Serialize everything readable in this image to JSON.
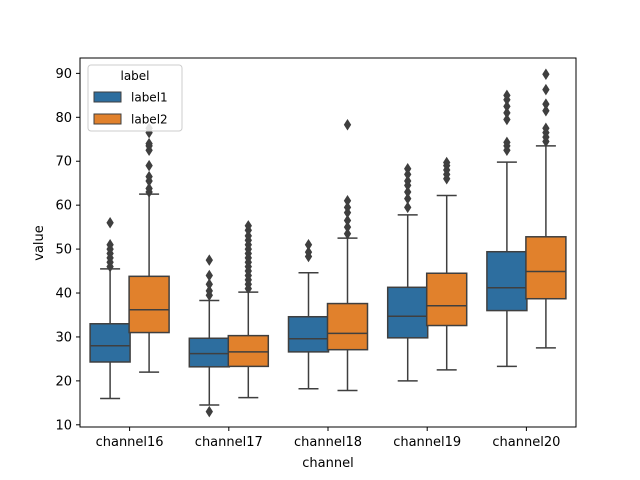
{
  "chart_data": {
    "type": "boxplot",
    "title": "",
    "xlabel": "channel",
    "ylabel": "value",
    "ylim": [
      9.5,
      93.5
    ],
    "yticks": [
      10,
      20,
      30,
      40,
      50,
      60,
      70,
      80,
      90
    ],
    "categories": [
      "channel16",
      "channel17",
      "channel18",
      "channel19",
      "channel20"
    ],
    "legend": {
      "title": "label",
      "position": "upper-left"
    },
    "grid": false,
    "series": [
      {
        "name": "label1",
        "color": "#2d6e9f",
        "boxes": [
          {
            "whislo": 16,
            "q1": 24.3,
            "med": 28,
            "q3": 33,
            "whishi": 45.5,
            "fliers": [
              46,
              47,
              48,
              49,
              50,
              51,
              56
            ]
          },
          {
            "whislo": 14.5,
            "q1": 23.2,
            "med": 26.2,
            "q3": 29.7,
            "whishi": 38.3,
            "fliers": [
              13,
              39.5,
              40.5,
              42,
              44,
              47.5
            ]
          },
          {
            "whislo": 18.2,
            "q1": 26.6,
            "med": 29.6,
            "q3": 34.6,
            "whishi": 44.6,
            "fliers": [
              48.3,
              49.3,
              51
            ]
          },
          {
            "whislo": 20,
            "q1": 29.8,
            "med": 34.7,
            "q3": 41.3,
            "whishi": 57.8,
            "fliers": [
              59.5,
              61.5,
              63,
              64.5,
              65.5,
              67,
              68.3
            ]
          },
          {
            "whislo": 23.3,
            "q1": 36,
            "med": 41.2,
            "q3": 49.4,
            "whishi": 69.8,
            "fliers": [
              72.5,
              73.5,
              74.3,
              79.5,
              81,
              82.5,
              84,
              85
            ]
          }
        ]
      },
      {
        "name": "label2",
        "color": "#e1812c",
        "boxes": [
          {
            "whislo": 22,
            "q1": 31,
            "med": 36.2,
            "q3": 43.8,
            "whishi": 62.5,
            "fliers": [
              63,
              63.8,
              65.5,
              66.5,
              69,
              72.5,
              73.5,
              74,
              76.5,
              77.5
            ]
          },
          {
            "whislo": 16.2,
            "q1": 23.3,
            "med": 26.6,
            "q3": 30.3,
            "whishi": 40.2,
            "fliers": [
              41,
              42,
              43,
              44,
              45,
              46,
              47,
              48,
              49,
              50,
              51,
              52,
              53,
              54.3,
              55.3
            ]
          },
          {
            "whislo": 17.8,
            "q1": 27.1,
            "med": 30.8,
            "q3": 37.6,
            "whishi": 52.5,
            "fliers": [
              53.5,
              55,
              56.5,
              58.3,
              59.5,
              61,
              78.3
            ]
          },
          {
            "whislo": 22.5,
            "q1": 32.6,
            "med": 37.1,
            "q3": 44.5,
            "whishi": 62.2,
            "fliers": [
              66,
              67,
              68,
              69,
              69.7
            ]
          },
          {
            "whislo": 27.5,
            "q1": 38.7,
            "med": 44.9,
            "q3": 52.8,
            "whishi": 73.5,
            "fliers": [
              74.5,
              75.5,
              76.5,
              77.5,
              81.5,
              83,
              86.3,
              89.8
            ]
          }
        ]
      }
    ]
  }
}
